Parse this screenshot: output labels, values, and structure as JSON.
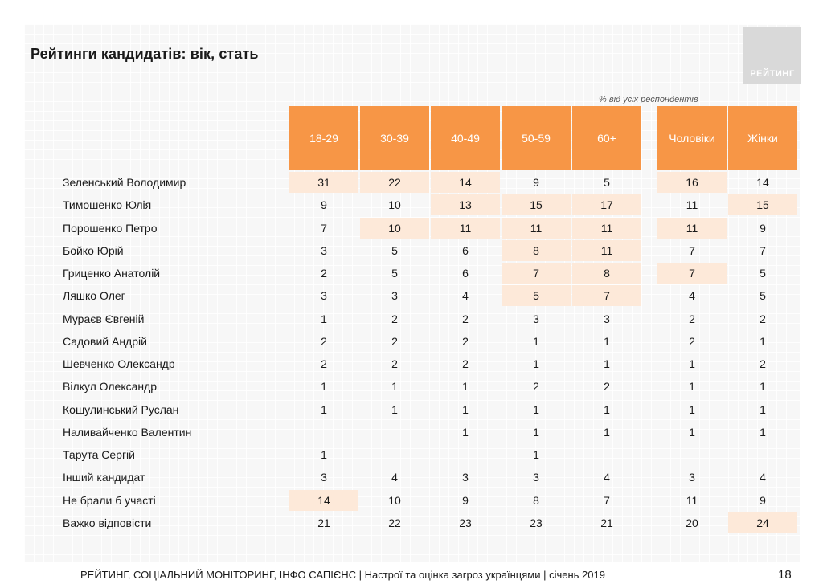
{
  "title": "Рейтинги кандидатів: вік, стать",
  "logo_text": "РЕЙТИНГ",
  "note": "% від усіх респондентів",
  "columns": [
    "18-29",
    "30-39",
    "40-49",
    "50-59",
    "60+",
    "Чоловіки",
    "Жінки"
  ],
  "rows": [
    {
      "name": "Зеленський Володимир",
      "values": [
        "31",
        "22",
        "14",
        "9",
        "5",
        "16",
        "14"
      ],
      "highlight": [
        1,
        1,
        1,
        0,
        0,
        1,
        0
      ]
    },
    {
      "name": "Тимошенко Юлія",
      "values": [
        "9",
        "10",
        "13",
        "15",
        "17",
        "11",
        "15"
      ],
      "highlight": [
        0,
        0,
        1,
        1,
        1,
        0,
        1
      ]
    },
    {
      "name": "Порошенко Петро",
      "values": [
        "7",
        "10",
        "11",
        "11",
        "11",
        "11",
        "9"
      ],
      "highlight": [
        0,
        1,
        1,
        1,
        1,
        1,
        0
      ]
    },
    {
      "name": "Бойко Юрій",
      "values": [
        "3",
        "5",
        "6",
        "8",
        "11",
        "7",
        "7"
      ],
      "highlight": [
        0,
        0,
        0,
        1,
        1,
        0,
        0
      ]
    },
    {
      "name": "Гриценко Анатолій",
      "values": [
        "2",
        "5",
        "6",
        "7",
        "8",
        "7",
        "5"
      ],
      "highlight": [
        0,
        0,
        0,
        1,
        1,
        1,
        0
      ]
    },
    {
      "name": "Ляшко Олег",
      "values": [
        "3",
        "3",
        "4",
        "5",
        "7",
        "4",
        "5"
      ],
      "highlight": [
        0,
        0,
        0,
        1,
        1,
        0,
        0
      ]
    },
    {
      "name": "Мураєв Євгеній",
      "values": [
        "1",
        "2",
        "2",
        "3",
        "3",
        "2",
        "2"
      ],
      "highlight": [
        0,
        0,
        0,
        0,
        0,
        0,
        0
      ]
    },
    {
      "name": "Садовий Андрій",
      "values": [
        "2",
        "2",
        "2",
        "1",
        "1",
        "2",
        "1"
      ],
      "highlight": [
        0,
        0,
        0,
        0,
        0,
        0,
        0
      ]
    },
    {
      "name": "Шевченко Олександр",
      "values": [
        "2",
        "2",
        "2",
        "1",
        "1",
        "1",
        "2"
      ],
      "highlight": [
        0,
        0,
        0,
        0,
        0,
        0,
        0
      ]
    },
    {
      "name": "Вілкул Олександр",
      "values": [
        "1",
        "1",
        "1",
        "2",
        "2",
        "1",
        "1"
      ],
      "highlight": [
        0,
        0,
        0,
        0,
        0,
        0,
        0
      ]
    },
    {
      "name": "Кошулинський Руслан",
      "values": [
        "1",
        "1",
        "1",
        "1",
        "1",
        "1",
        "1"
      ],
      "highlight": [
        0,
        0,
        0,
        0,
        0,
        0,
        0
      ]
    },
    {
      "name": "Наливайченко Валентин",
      "values": [
        "",
        "",
        "1",
        "1",
        "1",
        "1",
        "1"
      ],
      "highlight": [
        0,
        0,
        0,
        0,
        0,
        0,
        0
      ]
    },
    {
      "name": "Тарута Сергій",
      "values": [
        "1",
        "",
        "",
        "1",
        "",
        "",
        ""
      ],
      "highlight": [
        0,
        0,
        0,
        0,
        0,
        0,
        0
      ]
    },
    {
      "name": "Інший кандидат",
      "values": [
        "3",
        "4",
        "3",
        "3",
        "4",
        "3",
        "4"
      ],
      "highlight": [
        0,
        0,
        0,
        0,
        0,
        0,
        0
      ]
    },
    {
      "name": "Не брали б участі",
      "values": [
        "14",
        "10",
        "9",
        "8",
        "7",
        "11",
        "9"
      ],
      "highlight": [
        1,
        0,
        0,
        0,
        0,
        0,
        0
      ]
    },
    {
      "name": "Важко відповісти",
      "values": [
        "21",
        "22",
        "23",
        "23",
        "21",
        "20",
        "24"
      ],
      "highlight": [
        0,
        0,
        0,
        0,
        0,
        0,
        1
      ]
    }
  ],
  "footer": "РЕЙТИНГ, СОЦІАЛЬНИЙ МОНІТОРИНГ, ІНФО САПІЄНС | Настрої та оцінка загроз українцями | січень 2019",
  "page_number": "18",
  "colors": {
    "header": "#f79646",
    "highlight": "#fde9d9",
    "logo": "#d9d9d9"
  }
}
